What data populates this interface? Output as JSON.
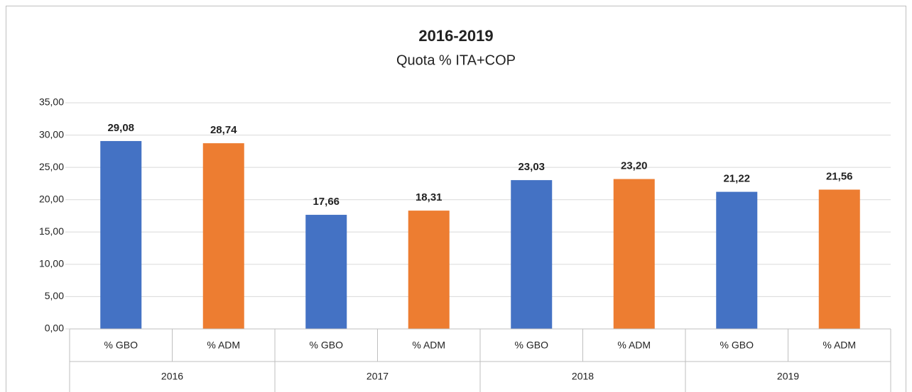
{
  "chart_data": {
    "type": "bar",
    "title": "2016-2019",
    "subtitle": "Quota % ITA+COP",
    "categories": [
      "% GBO",
      "% ADM",
      "% GBO",
      "% ADM",
      "% GBO",
      "% ADM",
      "% GBO",
      "% ADM"
    ],
    "groups": [
      "2016",
      "2017",
      "2018",
      "2019"
    ],
    "values": [
      29.08,
      28.74,
      17.66,
      18.31,
      23.03,
      23.2,
      21.22,
      21.56
    ],
    "value_labels": [
      "29,08",
      "28,74",
      "17,66",
      "18,31",
      "23,03",
      "23,20",
      "21,22",
      "21,56"
    ],
    "colors": [
      "#4472c4",
      "#ed7d31",
      "#4472c4",
      "#ed7d31",
      "#4472c4",
      "#ed7d31",
      "#4472c4",
      "#ed7d31"
    ],
    "ylim": [
      0,
      35
    ],
    "yticks": [
      {
        "value": 0,
        "label": "0,00"
      },
      {
        "value": 5,
        "label": "5,00"
      },
      {
        "value": 10,
        "label": "10,00"
      },
      {
        "value": 15,
        "label": "15,00"
      },
      {
        "value": 20,
        "label": "20,00"
      },
      {
        "value": 25,
        "label": "25,00"
      },
      {
        "value": 30,
        "label": "30,00"
      },
      {
        "value": 35,
        "label": "35,00"
      }
    ],
    "grid": true
  }
}
